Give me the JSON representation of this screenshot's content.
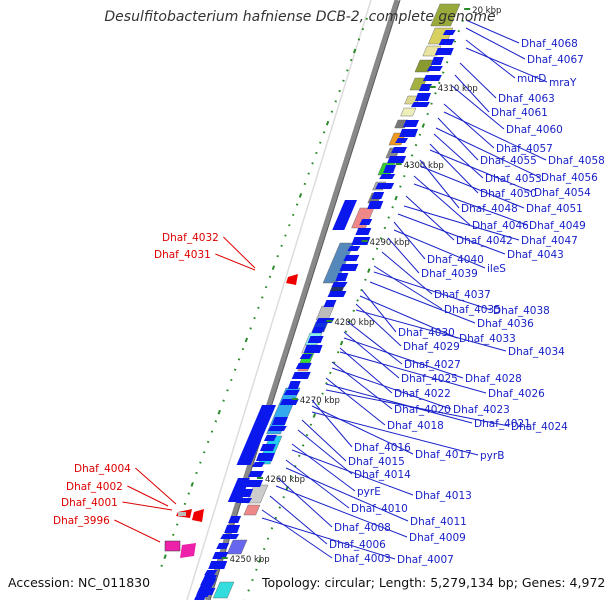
{
  "title": "Desulfitobacterium hafniense DCB-2, complete genome",
  "footer": {
    "accession": "Accession: NC_011830",
    "topology": "Topology: circular; Length: 5,279,134 bp; Genes: 4,972"
  },
  "colors": {
    "backbone": "#888888",
    "forward_gene": "#0a18ee",
    "label_right": "#1a22c8",
    "label_left": "#dd0000",
    "tick": "#2a8a2a"
  },
  "ruler": [
    "4250 kbp",
    "4260 kbp",
    "4270 kbp",
    "4280 kbp",
    "4290 kbp",
    "4300 kbp",
    "4310 kbp",
    "20 kbp"
  ],
  "genes_right": [
    "Dhaf_4068",
    "Dhaf_4067",
    "murD",
    "mraY",
    "Dhaf_4063",
    "Dhaf_4061",
    "Dhaf_4060",
    "Dhaf_4057",
    "Dhaf_4058",
    "Dhaf_4055",
    "Dhaf_4056",
    "Dhaf_4053",
    "Dhaf_4050",
    "Dhaf_4054",
    "Dhaf_4048",
    "Dhaf_4051",
    "Dhaf_4046",
    "Dhaf_4049",
    "Dhaf_4042",
    "Dhaf_4047",
    "Dhaf_4043",
    "Dhaf_4040",
    "ileS",
    "Dhaf_4039",
    "Dhaf_4037",
    "Dhaf_4035",
    "Dhaf_4038",
    "Dhaf_4036",
    "Dhaf_4030",
    "Dhaf_4033",
    "Dhaf_4029",
    "Dhaf_4034",
    "Dhaf_4027",
    "Dhaf_4025",
    "Dhaf_4028",
    "Dhaf_4022",
    "Dhaf_4026",
    "Dhaf_4020",
    "Dhaf_4023",
    "Dhaf_4018",
    "Dhaf_4021",
    "Dhaf_4024",
    "Dhaf_4016",
    "Dhaf_4017",
    "pyrB",
    "Dhaf_4015",
    "Dhaf_4014",
    "pyrE",
    "Dhaf_4013",
    "Dhaf_4010",
    "Dhaf_4011",
    "Dhaf_4008",
    "Dhaf_4009",
    "Dhaf_4006",
    "Dhaf_4003",
    "Dhaf_4007"
  ],
  "genes_left": [
    "Dhaf_4032",
    "Dhaf_4031",
    "Dhaf_4004",
    "Dhaf_4002",
    "Dhaf_4001",
    "Dhaf_3996"
  ]
}
